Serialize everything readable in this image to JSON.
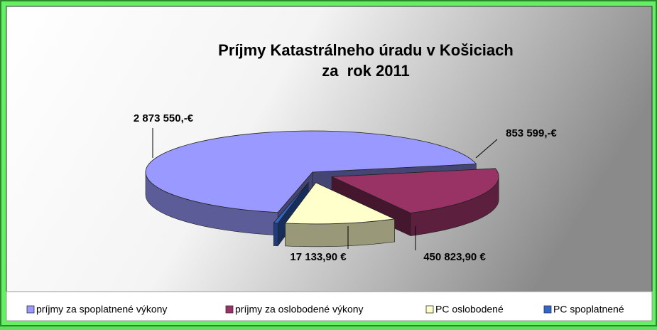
{
  "chart_data": {
    "type": "pie3d",
    "title": [
      "Príjmy Katastrálneho úradu v Košiciach",
      "za  rok 2011"
    ],
    "categories": [
      "príjmy za spoplatnené výkony",
      "príjmy za oslobodené výkony",
      "PC oslobodené",
      "PC spoplatnené"
    ],
    "values": [
      2873550,
      853599,
      450823.9,
      17133.9
    ],
    "value_labels": [
      "2 873 550,-€",
      "853 599,-€",
      "450 823,90 €",
      "17 133,90 €"
    ],
    "colors": [
      "#9999ff",
      "#993366",
      "#ffffcc",
      "#3366cc"
    ],
    "legend": "bottom"
  }
}
